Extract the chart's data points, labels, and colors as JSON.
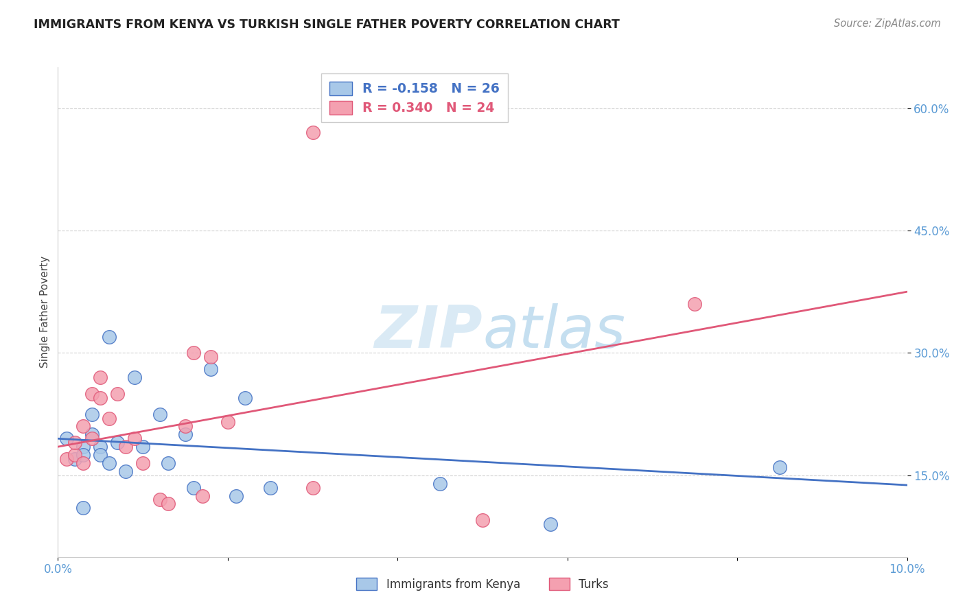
{
  "title": "IMMIGRANTS FROM KENYA VS TURKISH SINGLE FATHER POVERTY CORRELATION CHART",
  "source": "Source: ZipAtlas.com",
  "tick_color": "#5b9bd5",
  "ylabel": "Single Father Poverty",
  "xlim": [
    0.0,
    0.1
  ],
  "ylim": [
    0.05,
    0.65
  ],
  "xticks": [
    0.0,
    0.02,
    0.04,
    0.06,
    0.08,
    0.1
  ],
  "xtick_labels": [
    "0.0%",
    "",
    "",
    "",
    "",
    "10.0%"
  ],
  "yticks": [
    0.15,
    0.3,
    0.45,
    0.6
  ],
  "ytick_labels": [
    "15.0%",
    "30.0%",
    "45.0%",
    "60.0%"
  ],
  "color_blue": "#a8c8e8",
  "color_pink": "#f4a0b0",
  "line_blue": "#4472c4",
  "line_pink": "#e05878",
  "scatter_blue_x": [
    0.001,
    0.002,
    0.003,
    0.003,
    0.004,
    0.004,
    0.005,
    0.005,
    0.006,
    0.007,
    0.008,
    0.009,
    0.01,
    0.012,
    0.013,
    0.015,
    0.016,
    0.018,
    0.021,
    0.022,
    0.025,
    0.045,
    0.085,
    0.058,
    0.003,
    0.006
  ],
  "scatter_blue_y": [
    0.195,
    0.17,
    0.185,
    0.175,
    0.2,
    0.225,
    0.185,
    0.175,
    0.165,
    0.19,
    0.155,
    0.27,
    0.185,
    0.225,
    0.165,
    0.2,
    0.135,
    0.28,
    0.125,
    0.245,
    0.135,
    0.14,
    0.16,
    0.09,
    0.11,
    0.32
  ],
  "scatter_pink_x": [
    0.001,
    0.002,
    0.002,
    0.003,
    0.003,
    0.004,
    0.004,
    0.005,
    0.005,
    0.006,
    0.007,
    0.008,
    0.009,
    0.01,
    0.012,
    0.013,
    0.015,
    0.016,
    0.017,
    0.018,
    0.02,
    0.03,
    0.05,
    0.075,
    0.03
  ],
  "scatter_pink_y": [
    0.17,
    0.175,
    0.19,
    0.21,
    0.165,
    0.25,
    0.195,
    0.245,
    0.27,
    0.22,
    0.25,
    0.185,
    0.195,
    0.165,
    0.12,
    0.115,
    0.21,
    0.3,
    0.125,
    0.295,
    0.215,
    0.135,
    0.095,
    0.36,
    0.57
  ],
  "blue_trendline_x": [
    0.0,
    0.1
  ],
  "blue_trendline_y": [
    0.195,
    0.138
  ],
  "pink_trendline_x": [
    0.0,
    0.1
  ],
  "pink_trendline_y": [
    0.185,
    0.375
  ],
  "legend_labels": [
    "Immigrants from Kenya",
    "Turks"
  ],
  "background_color": "#ffffff",
  "grid_color": "#cccccc"
}
